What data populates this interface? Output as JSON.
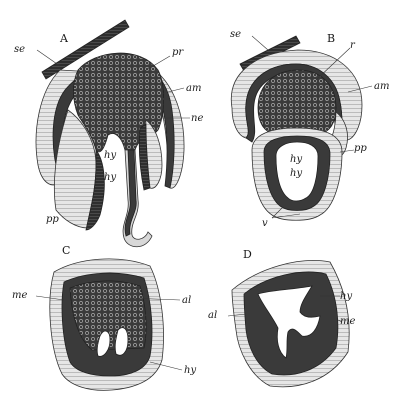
{
  "panels": [
    {
      "id": "A",
      "letter": "A",
      "labels": {
        "se": "se",
        "pr": "pr",
        "am": "am",
        "ne": "ne",
        "hy1": "hy",
        "hy2": "hy",
        "pp": "pp"
      }
    },
    {
      "id": "B",
      "letter": "B",
      "labels": {
        "se": "se",
        "r": "r",
        "am": "am",
        "hy1": "hy",
        "hy2": "hy",
        "pp": "pp",
        "v": "v"
      }
    },
    {
      "id": "C",
      "letter": "C",
      "labels": {
        "me": "me",
        "al": "al",
        "hy": "hy"
      }
    },
    {
      "id": "D",
      "letter": "D",
      "labels": {
        "al": "al",
        "hy": "hy",
        "me": "me"
      }
    }
  ]
}
